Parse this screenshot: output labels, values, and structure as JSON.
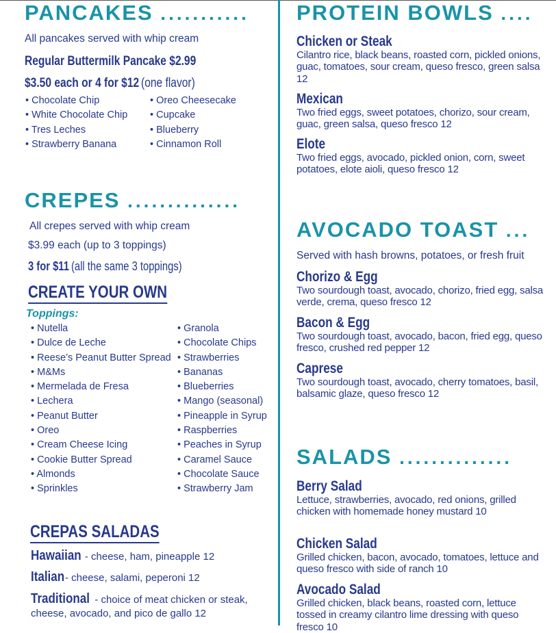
{
  "pancakes": {
    "title": "PANCAKES",
    "dots": "...........",
    "intro": "All pancakes served with whip cream",
    "regular": "Regular Buttermilk Pancake  $2.99",
    "deal": "$3.50 each or 4 for $12",
    "deal_note": "(one flavor)",
    "flavors_col1": [
      "Chocolate Chip",
      "White Chocolate Chip",
      "Tres Leches",
      "Strawberry Banana"
    ],
    "flavors_col2": [
      "Oreo Cheesecake",
      "Cupcake",
      "Blueberry",
      "Cinnamon Roll"
    ]
  },
  "crepes": {
    "title": "CREPES",
    "dots": "..............",
    "intro": "All crepes served with whip cream",
    "price": "$3.99 each (up to 3 toppings)",
    "deal": "3 for $11",
    "deal_note": "(all the same 3 toppings)",
    "create_title": "CREATE YOUR OWN",
    "toppings_label": "Toppings:",
    "toppings_col1": [
      "Nutella",
      "Dulce de Leche",
      "Reese’s Peanut Butter Spread",
      "M&Ms",
      "Mermelada de Fresa",
      "Lechera",
      "Peanut Butter",
      "Oreo",
      "Cream Cheese Icing",
      "Cookie Butter Spread",
      "Almonds",
      "Sprinkles"
    ],
    "toppings_col2": [
      "Granola",
      "Chocolate Chips",
      "Strawberries",
      "Bananas",
      "Blueberries",
      "Mango (seasonal)",
      "Pineapple in Syrup",
      "Raspberries",
      "Peaches in Syrup",
      "Caramel Sauce",
      "Chocolate Sauce",
      "Strawberry Jam"
    ]
  },
  "crepas_saladas": {
    "title": "CREPAS SALADAS",
    "items": [
      {
        "name": "Hawaiian",
        "desc": " - cheese, ham, pineapple  12"
      },
      {
        "name": "Italian",
        "desc": " - cheese, salami, peperoni  12"
      },
      {
        "name": "Traditional",
        "desc": " - choice of meat chicken or steak,",
        "desc2": "cheese, avocado, and pico de gallo  12"
      }
    ]
  },
  "protein_bowls": {
    "title": "PROTEIN BOWLS",
    "dots": "....",
    "items": [
      {
        "name": "Chicken or Steak",
        "desc": "Cilantro rice, black beans, roasted corn, pickled onions, guac, tomatoes, sour cream, queso fresco, green salsa  12"
      },
      {
        "name": "Mexican",
        "desc": "Two fried eggs, sweet potatoes, chorizo, sour cream, guac, green salsa, queso fresco  12"
      },
      {
        "name": "Elote",
        "desc": "Two fried eggs, avocado, pickled onion, corn, sweet potatoes, elote aioli, queso fresco  12"
      }
    ]
  },
  "avocado_toast": {
    "title": "AVOCADO TOAST",
    "dots": "...",
    "intro": "Served with hash browns, potatoes, or fresh fruit",
    "items": [
      {
        "name": "Chorizo & Egg",
        "desc": "Two sourdough toast, avocado, chorizo, fried egg, salsa verde, crema, queso fresco  12"
      },
      {
        "name": "Bacon & Egg",
        "desc": "Two sourdough toast, avocado, bacon, fried egg, queso fresco, crushed red pepper  12"
      },
      {
        "name": "Caprese",
        "desc": "Two sourdough toast, avocado, cherry tomatoes, basil, balsamic glaze, queso fresco  12"
      }
    ]
  },
  "salads": {
    "title": "SALADS",
    "dots": "..............",
    "items": [
      {
        "name": "Berry Salad",
        "desc": "Lettuce, strawberries, avocado, red onions, grilled chicken with homemade honey mustard  10"
      },
      {
        "name": "Chicken Salad",
        "desc": "Grilled chicken, bacon, avocado, tomatoes, lettuce and queso fresco with side of ranch   10"
      },
      {
        "name": "Avocado Salad",
        "desc": "Grilled chicken, black beans, roasted corn, lettuce tossed in creamy cilantro lime dressing with queso fresco  10"
      }
    ]
  },
  "colors": {
    "teal": "#1a93a8",
    "navy": "#27398c"
  }
}
